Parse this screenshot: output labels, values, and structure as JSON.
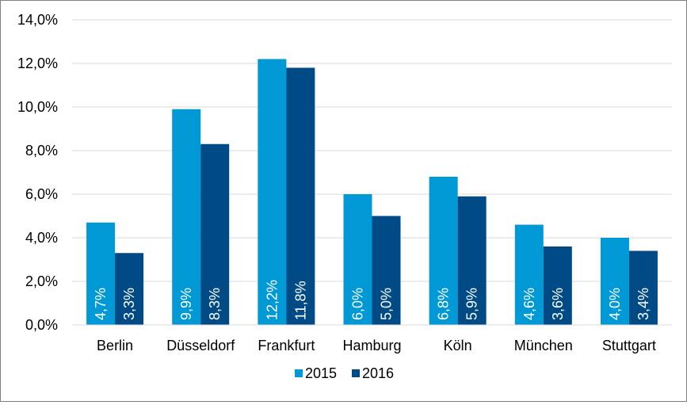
{
  "chart_data": {
    "type": "bar",
    "categories": [
      "Berlin",
      "Düsseldorf",
      "Frankfurt",
      "Hamburg",
      "Köln",
      "München",
      "Stuttgart"
    ],
    "series": [
      {
        "name": "2015",
        "color": "#0099d6",
        "values": [
          4.7,
          9.9,
          12.2,
          6.0,
          6.8,
          4.6,
          4.0
        ],
        "labels": [
          "4,7%",
          "9,9%",
          "12,2%",
          "6,0%",
          "6,8%",
          "4,6%",
          "4,0%"
        ]
      },
      {
        "name": "2016",
        "color": "#004a85",
        "values": [
          3.3,
          8.3,
          11.8,
          5.0,
          5.9,
          3.6,
          3.4
        ],
        "labels": [
          "3,3%",
          "8,3%",
          "11,8%",
          "5,0%",
          "5,9%",
          "3,6%",
          "3,4%"
        ]
      }
    ],
    "ylim": [
      0,
      14
    ],
    "yticks": [
      0,
      2,
      4,
      6,
      8,
      10,
      12,
      14
    ],
    "ytick_labels": [
      "0,0%",
      "2,0%",
      "4,0%",
      "6,0%",
      "8,0%",
      "10,0%",
      "12,0%",
      "14,0%"
    ],
    "grid": true,
    "legend_position": "bottom",
    "data_labels": "inside-bottom-rotated"
  }
}
